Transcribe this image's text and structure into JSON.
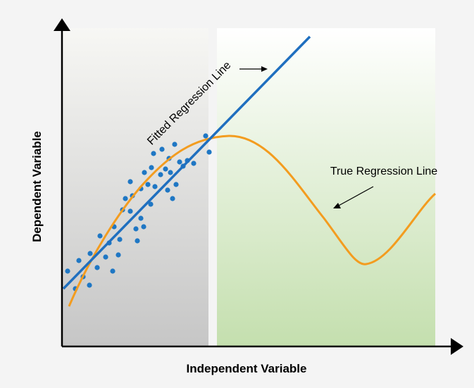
{
  "labels": {
    "y_axis": "Dependent Variable",
    "x_axis": "Independent Variable",
    "fitted": "Fitted Regression Line",
    "true": "True Regression Line"
  }
}
